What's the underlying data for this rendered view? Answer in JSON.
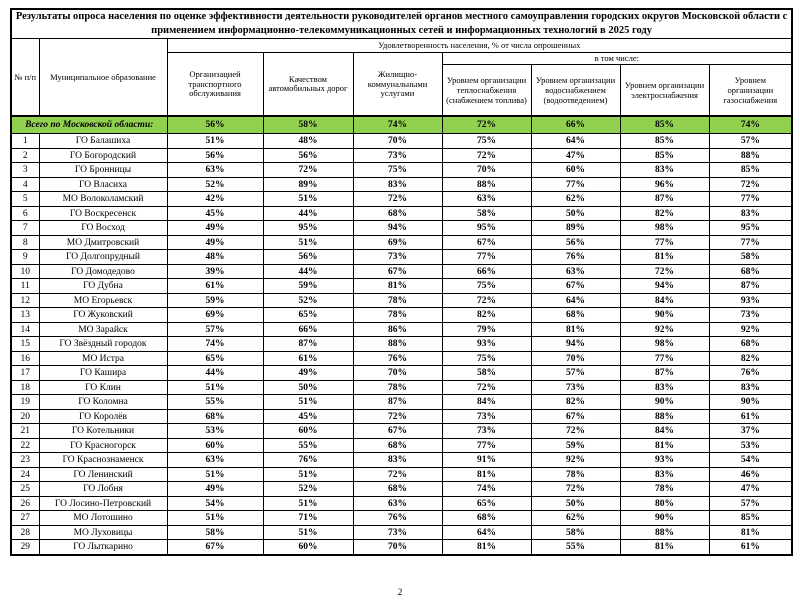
{
  "title": "Результаты опроса населения по оценке эффективности деятельности руководителей органов местного самоуправления городских округов Московской области с применением информационно-телекоммуникационных сетей и информационных технологий в 2025 году",
  "header": {
    "num_label": "№ п/п",
    "municipality_label": "Муниципальное образование",
    "satisfaction_label": "Удовлетворенность населения, % от числа опрошенных",
    "including_label": "в том числе:",
    "columns": [
      "Организацией транспортного обслуживания",
      "Качеством автомобильных дорог",
      "Жилищно-коммунальными услугами",
      "Уровнем организации теплоснабжения (снабжением топлива)",
      "Уровнем организации водоснабжением (водоотведением)",
      "Уровнем организации электроснабжения",
      "Уровнем организации газоснабжения"
    ]
  },
  "total_row": {
    "label": "Всего по Московской области:",
    "values": [
      "56%",
      "58%",
      "74%",
      "72%",
      "66%",
      "85%",
      "74%"
    ]
  },
  "rows": [
    {
      "num": "1",
      "name": "ГО Балашиха",
      "values": [
        "51%",
        "48%",
        "70%",
        "75%",
        "64%",
        "85%",
        "57%"
      ]
    },
    {
      "num": "2",
      "name": "ГО Богородский",
      "values": [
        "56%",
        "56%",
        "73%",
        "72%",
        "47%",
        "85%",
        "88%"
      ]
    },
    {
      "num": "3",
      "name": "ГО Бронницы",
      "values": [
        "63%",
        "72%",
        "75%",
        "70%",
        "60%",
        "83%",
        "85%"
      ]
    },
    {
      "num": "4",
      "name": "ГО Власиха",
      "values": [
        "52%",
        "89%",
        "83%",
        "88%",
        "77%",
        "96%",
        "72%"
      ]
    },
    {
      "num": "5",
      "name": "МО Волоколамский",
      "values": [
        "42%",
        "51%",
        "72%",
        "63%",
        "62%",
        "87%",
        "77%"
      ]
    },
    {
      "num": "6",
      "name": "ГО Воскресенск",
      "values": [
        "45%",
        "44%",
        "68%",
        "58%",
        "50%",
        "82%",
        "83%"
      ]
    },
    {
      "num": "7",
      "name": "ГО Восход",
      "values": [
        "49%",
        "95%",
        "94%",
        "95%",
        "89%",
        "98%",
        "95%"
      ]
    },
    {
      "num": "8",
      "name": "МО Дмитровский",
      "values": [
        "49%",
        "51%",
        "69%",
        "67%",
        "56%",
        "77%",
        "77%"
      ]
    },
    {
      "num": "9",
      "name": "ГО Долгопрудный",
      "values": [
        "48%",
        "56%",
        "73%",
        "77%",
        "76%",
        "81%",
        "58%"
      ]
    },
    {
      "num": "10",
      "name": "ГО Домодедово",
      "values": [
        "39%",
        "44%",
        "67%",
        "66%",
        "63%",
        "72%",
        "68%"
      ]
    },
    {
      "num": "11",
      "name": "ГО Дубна",
      "values": [
        "61%",
        "59%",
        "81%",
        "75%",
        "67%",
        "94%",
        "87%"
      ]
    },
    {
      "num": "12",
      "name": "МО Егорьевск",
      "values": [
        "59%",
        "52%",
        "78%",
        "72%",
        "64%",
        "84%",
        "93%"
      ]
    },
    {
      "num": "13",
      "name": "ГО Жуковский",
      "values": [
        "69%",
        "65%",
        "78%",
        "82%",
        "68%",
        "90%",
        "73%"
      ]
    },
    {
      "num": "14",
      "name": "МО Зарайск",
      "values": [
        "57%",
        "66%",
        "86%",
        "79%",
        "81%",
        "92%",
        "92%"
      ]
    },
    {
      "num": "15",
      "name": "ГО Звёздный городок",
      "values": [
        "74%",
        "87%",
        "88%",
        "93%",
        "94%",
        "98%",
        "68%"
      ]
    },
    {
      "num": "16",
      "name": "МО Истра",
      "values": [
        "65%",
        "61%",
        "76%",
        "75%",
        "70%",
        "77%",
        "82%"
      ]
    },
    {
      "num": "17",
      "name": "ГО Кашира",
      "values": [
        "44%",
        "49%",
        "70%",
        "58%",
        "57%",
        "87%",
        "76%"
      ]
    },
    {
      "num": "18",
      "name": "ГО Клин",
      "values": [
        "51%",
        "50%",
        "78%",
        "72%",
        "73%",
        "83%",
        "83%"
      ]
    },
    {
      "num": "19",
      "name": "ГО Коломна",
      "values": [
        "55%",
        "51%",
        "87%",
        "84%",
        "82%",
        "90%",
        "90%"
      ]
    },
    {
      "num": "20",
      "name": "ГО Королёв",
      "values": [
        "68%",
        "45%",
        "72%",
        "73%",
        "67%",
        "88%",
        "61%"
      ]
    },
    {
      "num": "21",
      "name": "ГО Котельники",
      "values": [
        "53%",
        "60%",
        "67%",
        "73%",
        "72%",
        "84%",
        "37%"
      ]
    },
    {
      "num": "22",
      "name": "ГО Красногорск",
      "values": [
        "60%",
        "55%",
        "68%",
        "77%",
        "59%",
        "81%",
        "53%"
      ]
    },
    {
      "num": "23",
      "name": "ГО Краснознаменск",
      "values": [
        "63%",
        "76%",
        "83%",
        "91%",
        "92%",
        "93%",
        "54%"
      ]
    },
    {
      "num": "24",
      "name": "ГО Ленинский",
      "values": [
        "51%",
        "51%",
        "72%",
        "81%",
        "78%",
        "83%",
        "46%"
      ]
    },
    {
      "num": "25",
      "name": "ГО Лобня",
      "values": [
        "49%",
        "52%",
        "68%",
        "74%",
        "72%",
        "78%",
        "47%"
      ]
    },
    {
      "num": "26",
      "name": "ГО Лосино-Петровский",
      "values": [
        "54%",
        "51%",
        "63%",
        "65%",
        "50%",
        "80%",
        "57%"
      ]
    },
    {
      "num": "27",
      "name": "МО Лотошино",
      "values": [
        "51%",
        "71%",
        "76%",
        "68%",
        "62%",
        "90%",
        "85%"
      ]
    },
    {
      "num": "28",
      "name": "МО Луховицы",
      "values": [
        "58%",
        "51%",
        "73%",
        "64%",
        "58%",
        "88%",
        "81%"
      ]
    },
    {
      "num": "29",
      "name": "ГО Лыткарино",
      "values": [
        "67%",
        "60%",
        "70%",
        "81%",
        "55%",
        "81%",
        "61%"
      ]
    }
  ],
  "page_number": "2",
  "colors": {
    "total_row_bg": "#92d050",
    "border": "#000000",
    "text": "#000000"
  }
}
